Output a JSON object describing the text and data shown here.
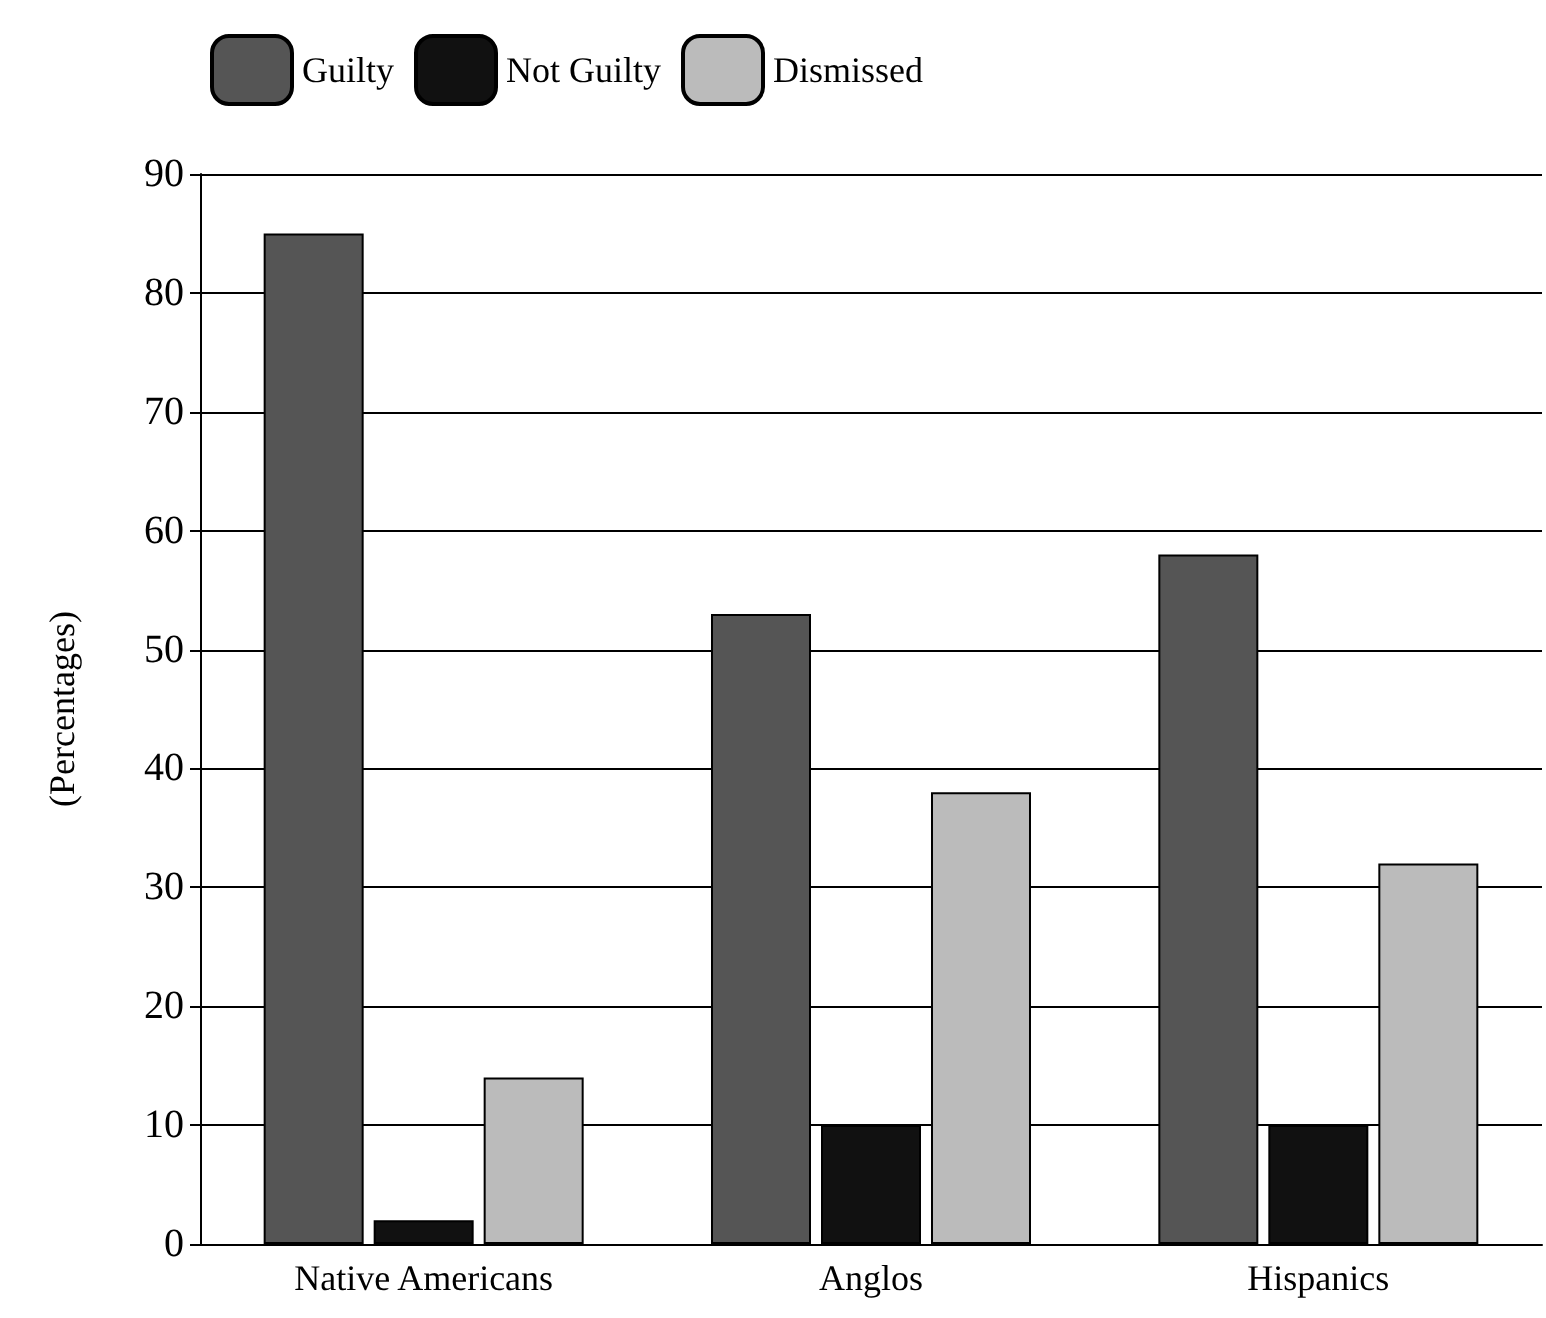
{
  "chart_data": {
    "type": "bar",
    "ylabel": "(Percentages)",
    "categories": [
      "Native Americans",
      "Anglos",
      "Hispanics"
    ],
    "series": [
      {
        "name": "Guilty",
        "color": "#555555",
        "values": [
          85,
          53,
          58
        ]
      },
      {
        "name": "Not Guilty",
        "color": "#111111",
        "values": [
          2,
          10,
          10
        ]
      },
      {
        "name": "Dismissed",
        "color": "#bbbbbb",
        "values": [
          14,
          38,
          32
        ]
      }
    ],
    "ylim": [
      0,
      90
    ],
    "yticks": [
      0,
      10,
      20,
      30,
      40,
      50,
      60,
      70,
      80,
      90
    ],
    "grid": "y",
    "legend": "top left"
  }
}
